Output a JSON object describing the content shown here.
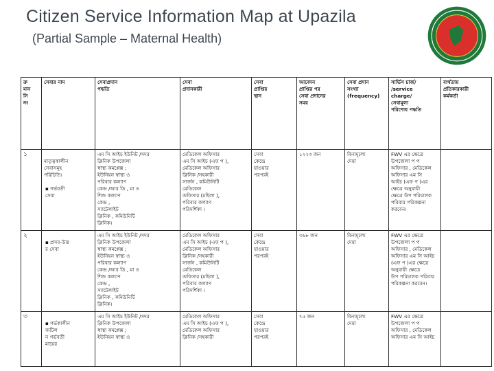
{
  "header": {
    "title": "Citizen Service Information Map at Upazila",
    "subtitle": "(Partial Sample – Maternal Health)"
  },
  "colors": {
    "title": "#3c4550",
    "seal_green": "#1f7a3a",
    "seal_red": "#d9302b"
  },
  "table": {
    "columns": [
      "ক্র\nমান\nসি\nনং",
      "সেবার নাম",
      "সেবাপ্রদান\nপদ্ধতি",
      "সেবা\nপ্রদানকারী",
      "সেবা\nপ্রাপ্তির\nস্থান",
      "আবেদন\nপ্রাপ্তির পর\nসেবা প্রদানের\nসময়",
      "সেবা প্রদান\nসংখ্যা\n(frequency)",
      "সার্ভিস চার্জ/\n/service\ncharge/\nসেবামূল্য\nপরিশোধ পদ্ধতি",
      "ব্যর্থতায়\nপ্রতিকারকারী\nকর্মকর্তা"
    ],
    "intro_cell": "মাতৃত্বকালীন\nসেবাসমূহ\nপরিচিতি।",
    "rows": [
      {
        "no": "১",
        "service": "গর্ভবতী\nসেবা",
        "method": "এম সি আইচ ইউনিট /সদর\nক্লিনিক উপজেলা\nস্বাস্থ্য কমপ্লেক্স ;\nইউনিয়ন স্বাস্থ্য ও\nপরিবার কল্যাণ\nকেন্দ্র /আর ডি , মা ও\nশিশু কল্যাণ\nকেন্দ্র ,\nস্যাটেলাইট\nক্লিনিক , কমিউনিটি\nক্লিনিক।",
        "provider": "মেডিকেল অফিসার\nএম সি আইচ (এফ প ),\nমেডিকেল অফিসার\nক্লিনিক /সহকারী\nসার্জন , কমিউনিটি\nমেডিকেল\nঅফিসার (মহিলা ),\nপরিবার কল্যাণ\nপরিদর্শিকা ।",
        "place": "সেবা\nকেন্দ্রে\nযাওয়ার\nপরপরই",
        "frequency": "১২২৩ জন",
        "charge": "বিনামূল্যে\nদেয়া",
        "officer": "FWV এর ক্ষেত্রে\nউপজেলা প প\nঅফিসার , মেডিকেল\nঅফিসার এম সি\nআইচ (এফ প )এর\nক্ষেত্রে অনুযায়ী\nক্ষেত্রে উপ পরিচালক\nপরিবার পরিকল্পনা\nকরবেন।"
      },
      {
        "no": "২",
        "service": "প্রসব-উত্ত\nর সেবা",
        "method": "এম সি আইচ ইউনিট /সদর\nক্লিনিক উপজেলা\nস্বাস্থ্য কমপ্লেক্স ;\nইউনিয়ন স্বাস্থ্য ও\nপরিবার কল্যাণ\nকেন্দ্র /আর ডি , মা ও\nশিশু কল্যাণ\nকেন্দ্র ,\nস্যাটেলাইট\nক্লিনিক , কমিউনিটি\nক্লিনিক।",
        "provider": "মেডিকেল অফিসার\nএম সি আইচ (এফ প ),\nমেডিকেল অফিসার\nক্লিনিক /সহকারী\nসার্জন , কমিউনিটি\nমেডিকেল\nঅফিসার (মহিলা ),\nপরিবার কল্যাণ\nপরিদর্শিকা ।",
        "place": "সেবা\nকেন্দ্রে\nযাওয়ার\nপরপরই",
        "frequency": "৩৬৮ জন",
        "charge": "বিনামূল্যে\nদেয়া",
        "officer": "FWV এর ক্ষেত্রে\nউপজেলা প প\nঅফিসার , মেডিকেল\nঅফিসার এম সি আইচ\n(এফ প )এর ক্ষেত্রে\nঅনুযায়ী ক্ষেত্রে\nউপ পরিচালক পরিবার\nপরিকল্পনা করবেন।"
      },
      {
        "no": "৩",
        "service": "গর্ভকালীন\nজটিল\nন গর্ভবতী\nমায়ের",
        "method": "এম সি আইচ ইউনিট /সদর\nক্লিনিক উপজেলা\nস্বাস্থ্য কমপ্লেক্স ;\nইউনিয়ন স্বাস্থ্য ও",
        "provider": "মেডিকেল অফিসার\nএম সি আইচ (এফ প ),\nমেডিকেল অফিসার\nক্লিনিক /সহকারী",
        "place": "সেবা\nকেন্দ্রে\nযাওয়ার\nপরপরই",
        "frequency": "৭৫ জন",
        "charge": "বিনামূল্যে\nদেয়া",
        "officer": "FWV এর ক্ষেত্রে\nউপজেলা প প\nঅফিসার , মেডিকেল\nঅফিসার এম সি আইচ"
      }
    ]
  }
}
